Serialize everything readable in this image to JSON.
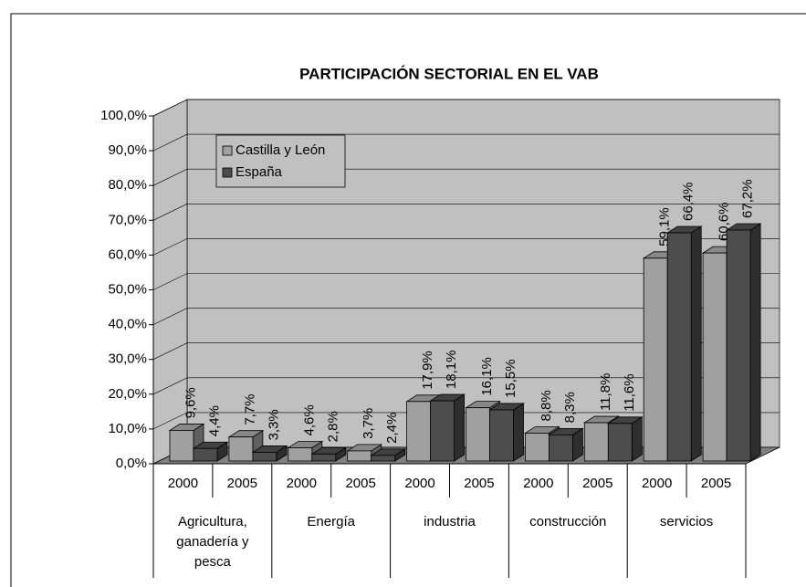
{
  "chart_data": {
    "type": "bar3d",
    "title": "PARTICIPACIÓN SECTORIAL EN EL VAB",
    "categories": [
      "2000",
      "2005",
      "2000",
      "2005",
      "2000",
      "2005",
      "2000",
      "2005",
      "2000",
      "2005"
    ],
    "groups": [
      "Agricultura, ganadería y pesca",
      "Energía",
      "industria",
      "construcción",
      "servicios"
    ],
    "ylim": [
      0,
      100
    ],
    "yticks": [
      {
        "value": 0,
        "label": "0,0%"
      },
      {
        "value": 10,
        "label": "10,0%"
      },
      {
        "value": 20,
        "label": "20,0%"
      },
      {
        "value": 30,
        "label": "30,0%"
      },
      {
        "value": 40,
        "label": "40,0%"
      },
      {
        "value": 50,
        "label": "50,0%"
      },
      {
        "value": 60,
        "label": "60,0%"
      },
      {
        "value": 70,
        "label": "70,0%"
      },
      {
        "value": 80,
        "label": "80,0%"
      },
      {
        "value": 90,
        "label": "90,0%"
      },
      {
        "value": 100,
        "label": "100,0%"
      }
    ],
    "grid": true,
    "series": [
      {
        "name": "Castilla y León",
        "color": "#a0a0a0",
        "values": [
          9.6,
          7.7,
          4.6,
          3.7,
          17.9,
          16.1,
          8.8,
          11.8,
          59.1,
          60.6
        ],
        "value_labels": [
          "9,6%",
          "7,7%",
          "4,6%",
          "3,7%",
          "17,9%",
          "16,1%",
          "8,8%",
          "11,8%",
          "59,1%",
          "60,6%"
        ]
      },
      {
        "name": "España",
        "color": "#4d4d4d",
        "values": [
          4.4,
          3.3,
          2.8,
          2.4,
          18.1,
          15.5,
          8.3,
          11.6,
          66.4,
          67.2
        ],
        "value_labels": [
          "4,4%",
          "3,3%",
          "2,8%",
          "2,4%",
          "18,1%",
          "15,5%",
          "8,3%",
          "11,6%",
          "66,4%",
          "67,2%"
        ]
      }
    ]
  }
}
